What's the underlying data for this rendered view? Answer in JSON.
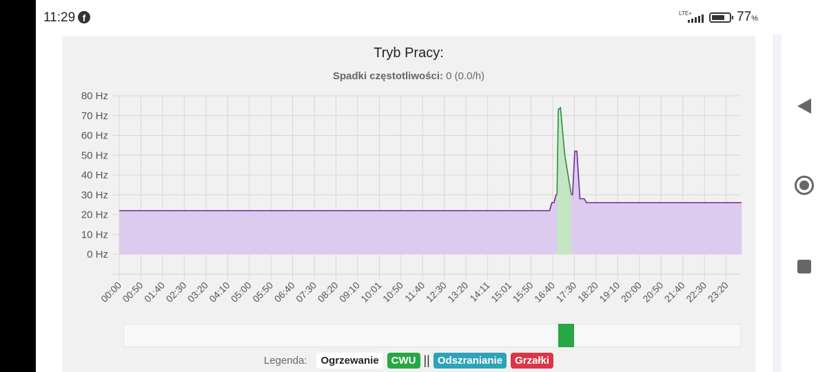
{
  "status_bar": {
    "time": "11:29",
    "notification_icon": "facebook-icon",
    "network": "LTE+",
    "battery_percent": "77",
    "percent_sign": "%"
  },
  "card": {
    "title": "Tryb Pracy:",
    "subtitle_label": "Spadki częstotliwości:",
    "subtitle_value": "0 (0.0/h)"
  },
  "legend": {
    "label": "Legenda:",
    "items": [
      "Ogrzewanie",
      "CWU",
      "Odszranianie",
      "Grzałki"
    ],
    "separator": "||",
    "colors": {
      "Ogrzewanie": "#ffffff",
      "CWU": "#28a745",
      "Odszranianie": "#2ea3b8",
      "Grzałki": "#dc3545"
    }
  },
  "nav": {
    "back": "back-icon",
    "home": "home-icon",
    "recents": "recents-icon"
  },
  "chart_data": {
    "type": "area",
    "title": "Tryb Pracy:",
    "subtitle": "Spadki częstotliwości: 0 (0.0/h)",
    "xlabel": "",
    "ylabel": "",
    "ylim": [
      0,
      80
    ],
    "yticks": [
      "0 Hz",
      "10 Hz",
      "20 Hz",
      "30 Hz",
      "40 Hz",
      "50 Hz",
      "60 Hz",
      "70 Hz",
      "80 Hz"
    ],
    "categories": [
      "00:00",
      "00:50",
      "01:40",
      "02:30",
      "03:20",
      "04:10",
      "05:00",
      "05:50",
      "06:40",
      "07:30",
      "08:20",
      "09:10",
      "10:01",
      "10:50",
      "11:40",
      "12:30",
      "13:20",
      "14:11",
      "15:01",
      "15:50",
      "16:40",
      "17:30",
      "18:20",
      "19:10",
      "20:00",
      "20:50",
      "21:40",
      "22:30",
      "23:20"
    ],
    "grid": true,
    "series": [
      {
        "name": "Ogrzewanie",
        "color": "#6a2c91",
        "fill": "#dccbef",
        "points": [
          [
            "00:00",
            22
          ],
          [
            "16:35",
            22
          ],
          [
            "16:40",
            26
          ],
          [
            "16:45",
            26
          ],
          [
            "16:50",
            30
          ],
          [
            "17:28",
            30
          ],
          [
            "17:33",
            52
          ],
          [
            "17:38",
            52
          ],
          [
            "17:45",
            28
          ],
          [
            "17:55",
            28
          ],
          [
            "18:00",
            26
          ],
          [
            "23:59",
            26
          ]
        ]
      },
      {
        "name": "CWU",
        "color": "#2e8b3e",
        "fill": "#c5e6c5",
        "points": [
          [
            "16:52",
            30
          ],
          [
            "16:55",
            73
          ],
          [
            "17:00",
            74
          ],
          [
            "17:10",
            50
          ],
          [
            "17:25",
            30
          ]
        ]
      }
    ],
    "mode_timeline": [
      {
        "mode": "CWU",
        "start": "16:52",
        "end": "17:30",
        "color": "#28a745"
      }
    ]
  }
}
